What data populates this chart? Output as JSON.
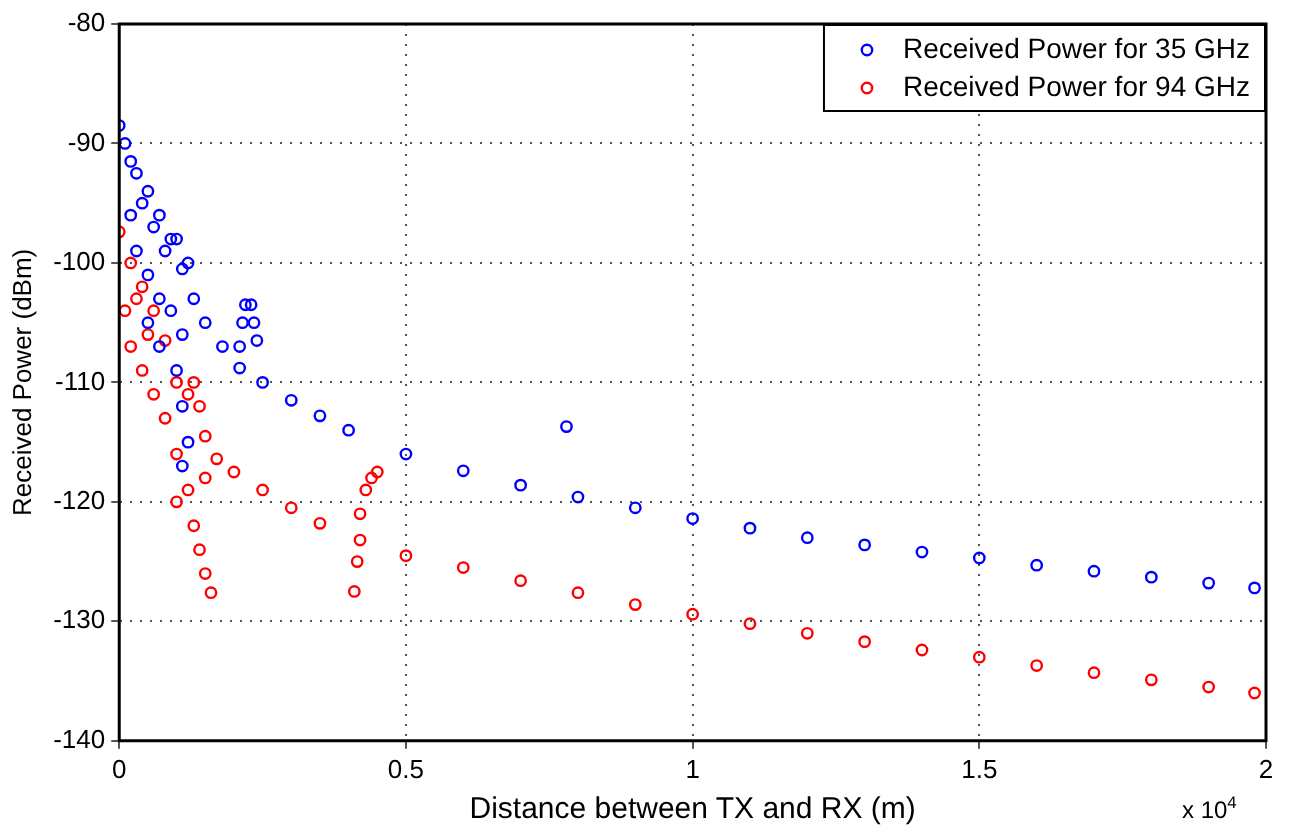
{
  "chart_data": {
    "type": "scatter",
    "xlabel": "Distance between TX and RX (m)",
    "ylabel": "Received Power (dBm)",
    "annotations": [
      "x 10$^{4}$"
    ],
    "xlim": [
      0,
      2
    ],
    "xticks": [
      0,
      0.5,
      1,
      1.5,
      2
    ],
    "ylim": [
      -140,
      -80
    ],
    "yticks": [
      -140,
      -130,
      -120,
      -110,
      -100,
      -90,
      -80
    ],
    "grid": true,
    "legend": "top right",
    "marker": "circle",
    "series": [
      {
        "name": "Received Power for 35 GHz",
        "color": "#0000ff",
        "x": [
          0,
          0.01,
          0.02,
          0.03,
          0.05,
          0.07,
          0.09,
          0.11,
          0.13,
          0.15,
          0.18,
          0.21,
          0.25,
          0.3,
          0.35,
          0.4,
          0.5,
          0.6,
          0.7,
          0.8,
          0.9,
          1,
          1.1,
          1.2,
          1.3,
          1.4,
          1.5,
          1.6,
          1.7,
          1.8,
          1.9,
          1.98,
          0.02,
          0.03,
          0.04,
          0.05,
          0.06,
          0.07,
          0.08,
          0.09,
          0.1,
          0.11,
          0.12,
          0.1,
          0.11,
          0.12,
          0.11,
          0.07,
          0.05,
          0.21,
          0.215,
          0.22,
          0.23,
          0.235,
          0.24,
          0.78
        ],
        "values": [
          -88.5,
          -90,
          -91.5,
          -92.5,
          -94,
          -96,
          -98,
          -100.5,
          -103,
          -105,
          -107,
          -108.8,
          -110,
          -111.5,
          -112.8,
          -114,
          -116,
          -117.4,
          -118.6,
          -119.6,
          -120.5,
          -121.4,
          -122.2,
          -123,
          -123.6,
          -124.2,
          -124.7,
          -125.3,
          -125.8,
          -126.3,
          -126.8,
          -127.2,
          -96,
          -99,
          -95,
          -101,
          -97,
          -103,
          -99,
          -104,
          -98,
          -106,
          -100,
          -109,
          -112,
          -115,
          -117,
          -107,
          -105,
          -107,
          -105,
          -103.5,
          -103.5,
          -105,
          -106.5,
          -113.7
        ]
      },
      {
        "name": "Received Power for 94 GHz",
        "color": "#ff0000",
        "x": [
          0,
          0.02,
          0.04,
          0.06,
          0.08,
          0.1,
          0.12,
          0.15,
          0.17,
          0.2,
          0.25,
          0.3,
          0.35,
          0.42,
          0.5,
          0.6,
          0.7,
          0.8,
          0.9,
          1,
          1.1,
          1.2,
          1.3,
          1.4,
          1.5,
          1.6,
          1.7,
          1.8,
          1.9,
          1.98,
          0.01,
          0.02,
          0.03,
          0.04,
          0.05,
          0.06,
          0.08,
          0.1,
          0.12,
          0.13,
          0.1,
          0.14,
          0.15,
          0.16,
          0.13,
          0.14,
          0.15,
          0.41,
          0.415,
          0.42,
          0.43,
          0.44,
          0.45
        ],
        "values": [
          -97.4,
          -100,
          -102,
          -104,
          -106.5,
          -110,
          -111,
          -114.5,
          -116.4,
          -117.5,
          -119,
          -120.5,
          -121.8,
          -123.2,
          -124.5,
          -125.5,
          -126.6,
          -127.6,
          -128.6,
          -129.4,
          -130.2,
          -131,
          -131.7,
          -132.4,
          -133,
          -133.7,
          -134.3,
          -134.9,
          -135.5,
          -136,
          -104,
          -107,
          -103,
          -109,
          -106,
          -111,
          -113,
          -116,
          -119,
          -122,
          -120,
          -124,
          -126,
          -127.6,
          -110,
          -112,
          -118,
          -127.5,
          -125,
          -121,
          -119,
          -118,
          -117.5
        ]
      }
    ]
  }
}
